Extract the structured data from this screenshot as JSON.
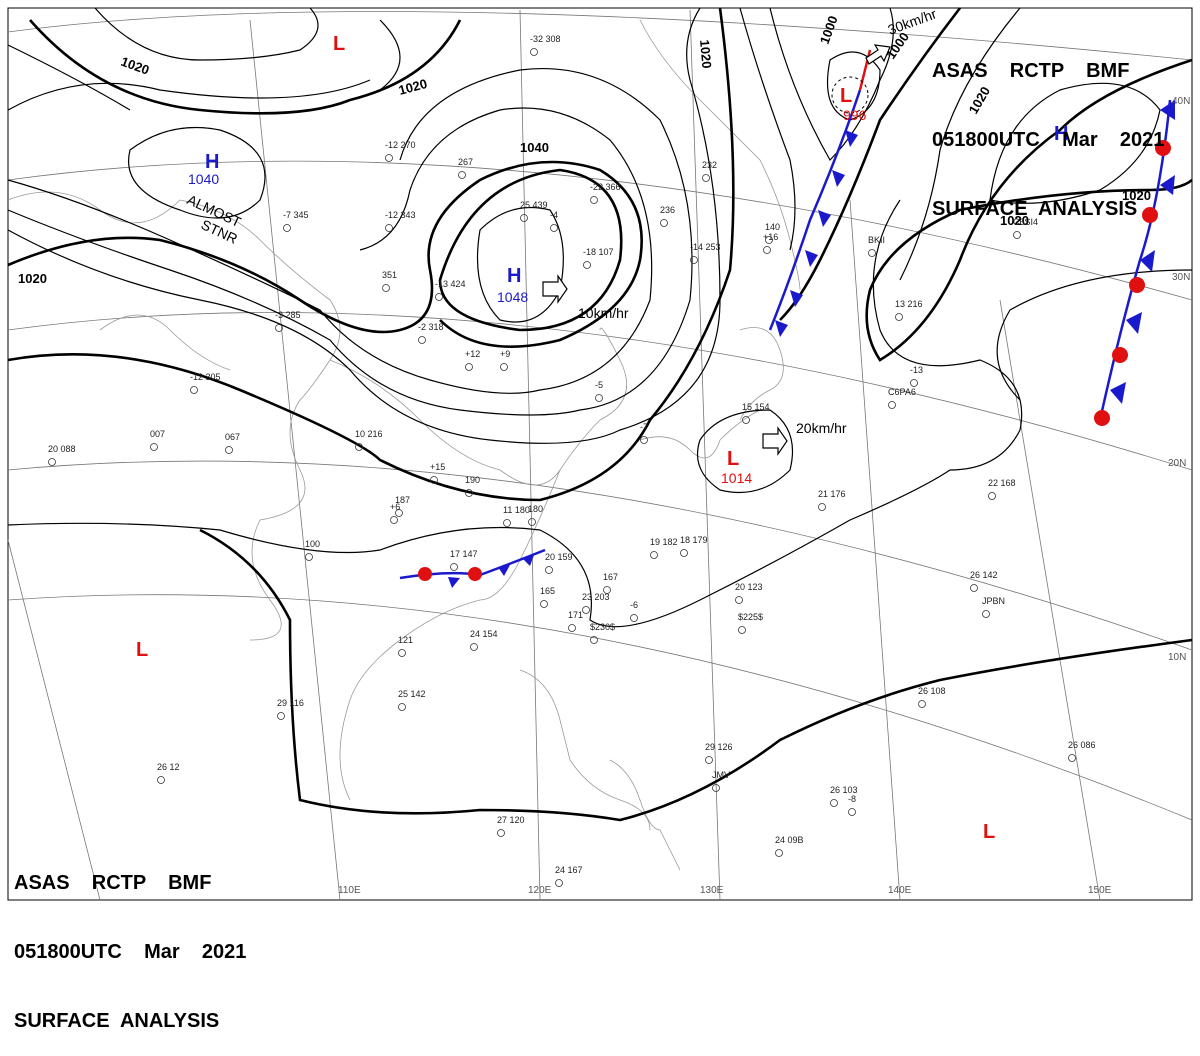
{
  "header": {
    "top": {
      "line1": "ASAS    RCTP    BMF",
      "line2": "051800UTC    Mar    2021",
      "line3": "SURFACE  ANALYSIS"
    },
    "bottom": {
      "line1": "ASAS    RCTP    BMF",
      "line2": "051800UTC    Mar    2021",
      "line3": "SURFACE  ANALYSIS"
    }
  },
  "colors": {
    "high": "#1a1acc",
    "low": "#e01010",
    "isobar": "#000000",
    "graticule": "#777777",
    "coast": "#999999"
  },
  "grid_labels": {
    "longitudes": [
      "110E",
      "120E",
      "130E",
      "140E",
      "150E"
    ],
    "latitudes": [
      "40N",
      "30N",
      "20N",
      "10N"
    ]
  },
  "isobar_labels": [
    "1020",
    "1020",
    "1020",
    "1020",
    "1040",
    "1020",
    "1000",
    "1000",
    "1020",
    "1020"
  ],
  "pressure_centers": [
    {
      "type": "H",
      "label": "H",
      "pressure": "1040"
    },
    {
      "type": "H",
      "label": "H",
      "pressure": "1048"
    },
    {
      "type": "H",
      "label": "H",
      "pressure": ""
    },
    {
      "type": "L",
      "label": "L",
      "pressure": "1014"
    },
    {
      "type": "L",
      "label": "L",
      "pressure": "996"
    },
    {
      "type": "L",
      "label": "L",
      "pressure": ""
    },
    {
      "type": "L",
      "label": "L",
      "pressure": ""
    },
    {
      "type": "L",
      "label": "L",
      "pressure": ""
    }
  ],
  "movements": [
    "10km/hr",
    "20km/hr",
    "30km/hr"
  ],
  "annotations": {
    "almost": "ALMOST",
    "stnr": "STNR"
  },
  "station_samples": [
    "-32 308",
    "-22 366",
    "-18 107",
    "-14 253",
    "-13 424",
    "-2 318",
    "25 439",
    "-12 270",
    "-12 343",
    "-7 345",
    "267",
    "351",
    "-3 285",
    "-12 305",
    "10 216",
    "190",
    "187",
    "180",
    "11 180",
    "17 147",
    "20 159",
    "167",
    "23 203",
    "165",
    "171",
    "20 123",
    "19 182",
    "18 179",
    "15 154",
    "13 216",
    "22 168",
    "21 176",
    "26 142",
    "26 108",
    "26 086",
    "26 103",
    "24 09B",
    "29 126",
    "27 120",
    "24 167",
    "25 142",
    "29 116",
    "26 12",
    "24 154",
    "20 088",
    "007",
    "067",
    "100",
    "121",
    "$225$",
    "$230$",
    "JMV",
    "JPBN",
    "BKII",
    "C6SI4",
    "C6PA6",
    "140",
    "232",
    "236",
    "-13",
    "-7",
    "+12",
    "+9",
    "+15",
    "+16",
    "+6",
    "-4",
    "-5",
    "-6",
    "-8"
  ]
}
